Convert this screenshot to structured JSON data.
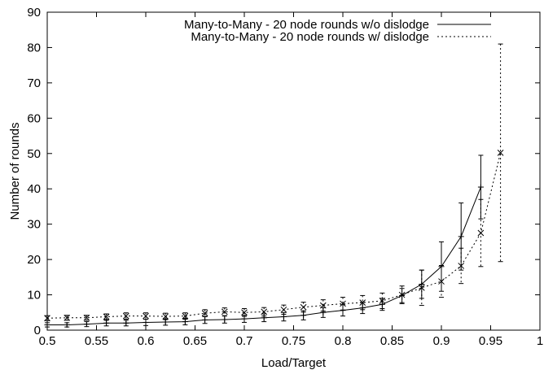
{
  "chart_data": {
    "type": "line",
    "xlabel": "Load/Target",
    "ylabel": "Number of rounds",
    "xlim": [
      0.5,
      1.0
    ],
    "ylim": [
      0,
      90
    ],
    "xticks": [
      0.5,
      0.55,
      0.6,
      0.65,
      0.7,
      0.75,
      0.8,
      0.85,
      0.9,
      0.95,
      1.0
    ],
    "xtick_labels": [
      "0.5",
      "0.55",
      "0.6",
      "0.65",
      "0.7",
      "0.75",
      "0.8",
      "0.85",
      "0.9",
      "0.95",
      "1"
    ],
    "yticks": [
      0,
      10,
      20,
      30,
      40,
      50,
      60,
      70,
      80,
      90
    ],
    "ytick_labels": [
      "0",
      "10",
      "20",
      "30",
      "40",
      "50",
      "60",
      "70",
      "80",
      "90"
    ],
    "grid": false,
    "legend_position": "top-right",
    "series": [
      {
        "name": "Many-to-Many - 20 node rounds w/o dislodge",
        "style": "solid",
        "marker": "+",
        "color": "#000000",
        "x": [
          0.5,
          0.52,
          0.54,
          0.56,
          0.58,
          0.6,
          0.62,
          0.64,
          0.66,
          0.68,
          0.7,
          0.72,
          0.74,
          0.76,
          0.78,
          0.8,
          0.82,
          0.84,
          0.86,
          0.88,
          0.9,
          0.92,
          0.94
        ],
        "y": [
          1.5,
          1.5,
          1.7,
          2.0,
          2.0,
          2.2,
          2.3,
          2.4,
          2.9,
          3.0,
          3.2,
          3.5,
          3.8,
          4.2,
          5.0,
          5.6,
          6.3,
          7.3,
          9.8,
          13.0,
          18.0,
          26.5,
          40.5
        ],
        "err": [
          0.6,
          0.6,
          0.7,
          0.8,
          0.8,
          0.9,
          0.9,
          0.9,
          1.0,
          1.0,
          1.0,
          1.1,
          1.2,
          1.3,
          1.4,
          1.6,
          1.6,
          1.7,
          2.0,
          4.0,
          7.0,
          9.5,
          9.0
        ]
      },
      {
        "name": "Many-to-Many - 20 node rounds w/ dislodge",
        "style": "dotted",
        "marker": "x",
        "color": "#000000",
        "x": [
          0.5,
          0.52,
          0.54,
          0.56,
          0.58,
          0.6,
          0.62,
          0.64,
          0.66,
          0.68,
          0.7,
          0.72,
          0.74,
          0.76,
          0.78,
          0.8,
          0.82,
          0.84,
          0.86,
          0.88,
          0.9,
          0.92,
          0.94,
          0.96
        ],
        "y": [
          3.4,
          3.5,
          3.5,
          3.8,
          4.0,
          4.0,
          3.9,
          4.0,
          4.8,
          5.2,
          5.0,
          5.2,
          5.8,
          6.5,
          7.0,
          7.5,
          7.8,
          8.3,
          10.0,
          12.0,
          13.8,
          18.2,
          27.5,
          50.2
        ],
        "err": [
          0.7,
          0.7,
          0.7,
          0.8,
          0.9,
          0.9,
          0.9,
          0.9,
          1.0,
          1.1,
          1.1,
          1.2,
          1.3,
          1.4,
          1.6,
          1.8,
          2.0,
          2.2,
          2.5,
          5.0,
          4.5,
          5.0,
          9.5,
          30.8
        ]
      }
    ]
  }
}
